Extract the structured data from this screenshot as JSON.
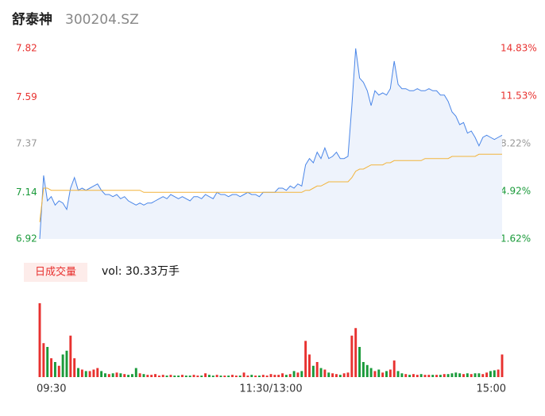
{
  "header": {
    "name": "舒泰神",
    "code": "300204.SZ"
  },
  "chart_data": [
    {
      "type": "line",
      "xlim": [
        0,
        120
      ],
      "xticks": [
        {
          "value": 0,
          "label": "09:30"
        },
        {
          "value": 60,
          "label": "11:30/13:00"
        },
        {
          "value": 120,
          "label": "15:00"
        }
      ],
      "ylim": [
        6.92,
        7.82
      ],
      "yticks": [
        6.92,
        7.14,
        7.37,
        7.59,
        7.82
      ],
      "y2lim": [
        1.62,
        14.83
      ],
      "y2ticks": [
        {
          "value": 1.62,
          "label": "1.62%"
        },
        {
          "value": 4.92,
          "label": "4.92%"
        },
        {
          "value": 8.22,
          "label": "8.22%"
        },
        {
          "value": 11.53,
          "label": "11.53%"
        },
        {
          "value": 14.83,
          "label": "14.83%"
        }
      ],
      "series": [
        {
          "color": "#4a86e8",
          "values": [
            6.92,
            7.22,
            7.1,
            7.12,
            7.08,
            7.1,
            7.09,
            7.06,
            7.16,
            7.21,
            7.15,
            7.16,
            7.15,
            7.16,
            7.17,
            7.18,
            7.15,
            7.13,
            7.13,
            7.12,
            7.13,
            7.11,
            7.12,
            7.1,
            7.09,
            7.08,
            7.09,
            7.08,
            7.09,
            7.09,
            7.1,
            7.11,
            7.12,
            7.11,
            7.13,
            7.12,
            7.11,
            7.12,
            7.11,
            7.1,
            7.12,
            7.12,
            7.11,
            7.13,
            7.12,
            7.11,
            7.14,
            7.13,
            7.13,
            7.12,
            7.13,
            7.13,
            7.12,
            7.13,
            7.14,
            7.13,
            7.13,
            7.12,
            7.14,
            7.14,
            7.14,
            7.14,
            7.16,
            7.16,
            7.15,
            7.17,
            7.16,
            7.18,
            7.17,
            7.27,
            7.3,
            7.28,
            7.33,
            7.3,
            7.35,
            7.3,
            7.31,
            7.33,
            7.3,
            7.3,
            7.31,
            7.55,
            7.82,
            7.68,
            7.66,
            7.62,
            7.55,
            7.62,
            7.6,
            7.61,
            7.6,
            7.63,
            7.76,
            7.65,
            7.63,
            7.63,
            7.62,
            7.62,
            7.63,
            7.62,
            7.62,
            7.63,
            7.62,
            7.62,
            7.6,
            7.6,
            7.57,
            7.52,
            7.5,
            7.46,
            7.47,
            7.42,
            7.43,
            7.4,
            7.36,
            7.4,
            7.41,
            7.4,
            7.39,
            7.4,
            7.41
          ]
        },
        {
          "color": "#f2b43c",
          "values": [
            7.0,
            7.16,
            7.16,
            7.15,
            7.15,
            7.15,
            7.15,
            7.15,
            7.15,
            7.15,
            7.15,
            7.15,
            7.15,
            7.15,
            7.15,
            7.15,
            7.15,
            7.15,
            7.15,
            7.15,
            7.15,
            7.15,
            7.15,
            7.15,
            7.15,
            7.15,
            7.15,
            7.14,
            7.14,
            7.14,
            7.14,
            7.14,
            7.14,
            7.14,
            7.14,
            7.14,
            7.14,
            7.14,
            7.14,
            7.14,
            7.14,
            7.14,
            7.14,
            7.14,
            7.14,
            7.14,
            7.14,
            7.14,
            7.14,
            7.14,
            7.14,
            7.14,
            7.14,
            7.14,
            7.14,
            7.14,
            7.14,
            7.14,
            7.14,
            7.14,
            7.14,
            7.14,
            7.14,
            7.14,
            7.14,
            7.14,
            7.14,
            7.14,
            7.14,
            7.15,
            7.15,
            7.16,
            7.17,
            7.17,
            7.18,
            7.19,
            7.19,
            7.19,
            7.19,
            7.19,
            7.19,
            7.21,
            7.24,
            7.25,
            7.25,
            7.26,
            7.27,
            7.27,
            7.27,
            7.27,
            7.28,
            7.28,
            7.29,
            7.29,
            7.29,
            7.29,
            7.29,
            7.29,
            7.29,
            7.29,
            7.3,
            7.3,
            7.3,
            7.3,
            7.3,
            7.3,
            7.3,
            7.31,
            7.31,
            7.31,
            7.31,
            7.31,
            7.31,
            7.31,
            7.32,
            7.32,
            7.32,
            7.32,
            7.32,
            7.32,
            7.32
          ]
        }
      ]
    },
    {
      "type": "bar",
      "title": "日成交量",
      "subtitle": "vol: 30.33万手",
      "ylim": [
        0,
        100
      ],
      "up_color": "#e8312f",
      "down_color": "#1a9a3a",
      "values": [
        98,
        45,
        40,
        25,
        20,
        15,
        30,
        35,
        55,
        25,
        12,
        10,
        8,
        8,
        10,
        12,
        8,
        5,
        4,
        5,
        6,
        5,
        4,
        3,
        4,
        12,
        5,
        4,
        3,
        3,
        4,
        2,
        3,
        2,
        3,
        2,
        2,
        3,
        2,
        2,
        3,
        2,
        2,
        5,
        3,
        2,
        3,
        2,
        2,
        2,
        3,
        2,
        2,
        6,
        2,
        3,
        2,
        2,
        3,
        2,
        4,
        3,
        3,
        5,
        3,
        4,
        8,
        6,
        8,
        48,
        30,
        15,
        20,
        12,
        10,
        6,
        5,
        4,
        3,
        5,
        6,
        55,
        65,
        40,
        20,
        16,
        12,
        8,
        10,
        6,
        8,
        10,
        22,
        8,
        5,
        4,
        3,
        4,
        3,
        4,
        3,
        3,
        3,
        3,
        3,
        4,
        4,
        5,
        6,
        5,
        4,
        5,
        4,
        5,
        5,
        4,
        6,
        8,
        9,
        10,
        30
      ]
    }
  ]
}
